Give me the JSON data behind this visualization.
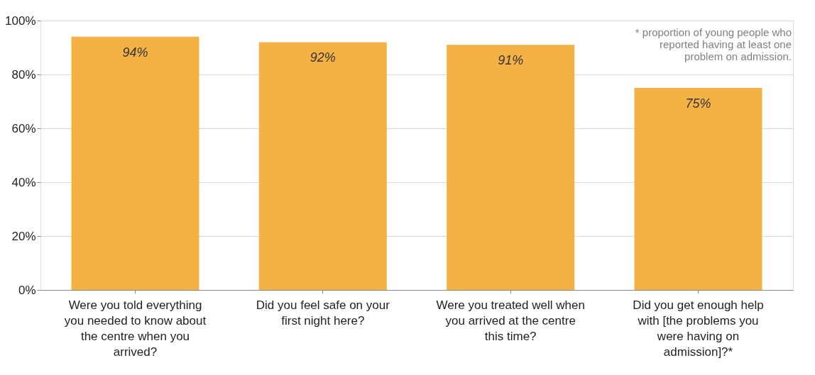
{
  "chart_data": {
    "type": "bar",
    "categories": [
      "Were you told everything you needed to know about the centre when you arrived?",
      "Did you feel safe on your first night here?",
      "Were you treated well when you arrived at the centre this time?",
      "Did you get enough help with [the problems you were having on admission]?*"
    ],
    "values": [
      94,
      92,
      91,
      75
    ],
    "color": "#f5b244",
    "ylim": [
      0,
      100
    ],
    "yticks": [
      {
        "value": 0,
        "label": "0%"
      },
      {
        "value": 20,
        "label": "20%"
      },
      {
        "value": 40,
        "label": "40%"
      },
      {
        "value": 60,
        "label": "60%"
      },
      {
        "value": 80,
        "label": "80%"
      },
      {
        "value": 100,
        "label": "100%"
      }
    ],
    "grid": "y",
    "data_labels": true,
    "value_labels": [
      "94%",
      "92%",
      "91%",
      "75%"
    ],
    "annotations": [
      "* proportion of young people who reported having at least one problem on admission."
    ]
  }
}
